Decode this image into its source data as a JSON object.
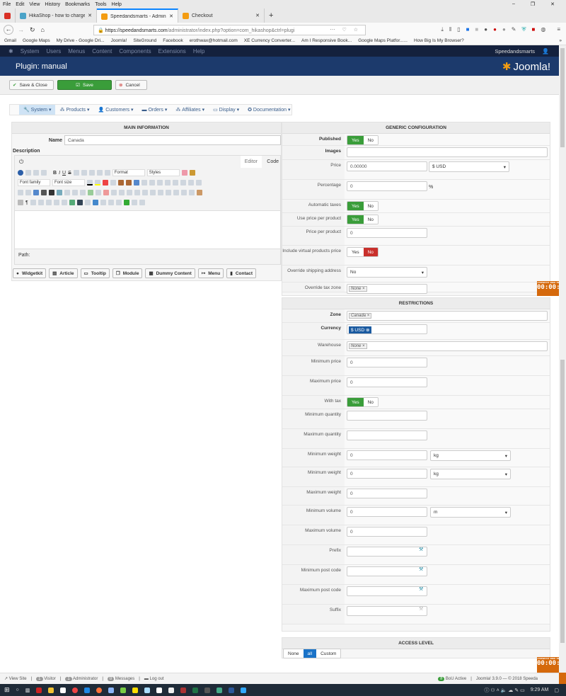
{
  "browser": {
    "menu": [
      "File",
      "Edit",
      "View",
      "History",
      "Bookmarks",
      "Tools",
      "Help"
    ],
    "tabs": [
      {
        "label": ""
      },
      {
        "label": "HikaShop - how to charge diffe"
      },
      {
        "label": "Speedandsmarts - Administrat"
      },
      {
        "label": "Checkout"
      }
    ],
    "url_host": "https://speedandsmarts.com",
    "url_path": "/administrator/index.php?option=com_hikashop&ctrl=plugi",
    "bookmarks": [
      "Gmail",
      "Google Maps",
      "My Drive - Google Dri...",
      "Joomla!",
      "SiteGround",
      "Facebook",
      "erothwax@hotmail.com",
      "XE Currency Converter...",
      "Am I Responsive Book...",
      "Google Maps Platfor......",
      "How Big Is My Browser?"
    ]
  },
  "joomla": {
    "nav": [
      "System",
      "Users",
      "Menus",
      "Content",
      "Components",
      "Extensions",
      "Help"
    ],
    "site_link": "Speedandsmarts",
    "page_title": "Plugin: manual",
    "logo_text": "Joomla!",
    "toolbar": {
      "save_close": "Save & Close",
      "save": "Save",
      "cancel": "Cancel"
    },
    "colors": {
      "nav": "#14213d",
      "header": "#1c3a6c",
      "save": "#3a9d3a",
      "toggle_on": "#3a9d3a",
      "toggle_no": "#c9302c",
      "timer": "#d5690c"
    }
  },
  "hika_menu": [
    "System",
    "Products",
    "Customers",
    "Orders",
    "Affiliates",
    "Display",
    "Documentation"
  ],
  "main_info": {
    "title": "MAIN INFORMATION",
    "name_label": "Name",
    "name_value": "Canada",
    "description_label": "Description",
    "editor_tabs": [
      "Editor",
      "Code"
    ],
    "dropdowns": {
      "format": "Format",
      "styles": "Styles",
      "font_family": "Font family",
      "font_size": "Font size"
    },
    "path_label": "Path:",
    "buttons": [
      "Widgetkit",
      "Article",
      "Tooltip",
      "Module",
      "Dummy Content",
      "Menu",
      "Contact"
    ]
  },
  "generic": {
    "title": "GENERIC CONFIGURATION",
    "fields": [
      {
        "label": "Published",
        "type": "toggle",
        "value": "Yes",
        "bold": true
      },
      {
        "label": "Images",
        "type": "input",
        "value": "",
        "bold": true,
        "wide": true
      },
      {
        "label": "Price",
        "type": "price",
        "value": "0.00000",
        "currency": "$ USD"
      },
      {
        "label": "Percentage",
        "type": "input",
        "value": "0",
        "unit": "%"
      },
      {
        "label": "Automatic taxes",
        "type": "toggle",
        "value": "Yes"
      },
      {
        "label": "Use price per product",
        "type": "toggle",
        "value": "Yes"
      },
      {
        "label": "Price per product",
        "type": "input",
        "value": "0"
      },
      {
        "label": "Include virtual products price",
        "type": "toggle",
        "value": "No"
      },
      {
        "label": "Override shipping address",
        "type": "select",
        "value": "No"
      },
      {
        "label": "Override tax zone",
        "type": "tags",
        "tags": [
          "None"
        ]
      }
    ]
  },
  "restrictions": {
    "title": "RESTRICTIONS",
    "fields": [
      {
        "label": "Zone",
        "type": "tags",
        "tags": [
          "Canada"
        ],
        "bold": true,
        "wide": true
      },
      {
        "label": "Currency",
        "type": "currency",
        "tags": [
          "$ USD"
        ],
        "bold": true
      },
      {
        "label": "Warehouse",
        "type": "tags",
        "tags": [
          "None"
        ],
        "wide": true
      },
      {
        "label": "Minimum price",
        "type": "input",
        "value": "0"
      },
      {
        "label": "Maximum price",
        "type": "input",
        "value": "0"
      },
      {
        "label": "With tax",
        "type": "toggle",
        "value": "Yes"
      },
      {
        "label": "Minimum quantity",
        "type": "input",
        "value": ""
      },
      {
        "label": "Maximum quantity",
        "type": "input",
        "value": ""
      },
      {
        "label": "Minimum weight",
        "type": "unit",
        "value": "0",
        "unit": "kg"
      },
      {
        "label": "Minimum weight",
        "type": "unit",
        "value": "0",
        "unit": "kg"
      },
      {
        "label": "Maximum weight",
        "type": "input",
        "value": "0"
      },
      {
        "label": "Minimum volume",
        "type": "unit",
        "value": "0",
        "unit": "m"
      },
      {
        "label": "Maximum volume",
        "type": "input",
        "value": "0"
      },
      {
        "label": "Prefix",
        "type": "regex",
        "value": ""
      },
      {
        "label": "Minimum post code",
        "type": "regex",
        "value": ""
      },
      {
        "label": "Maximum post code",
        "type": "regex",
        "value": ""
      },
      {
        "label": "Suffix",
        "type": "regex",
        "value": ""
      }
    ]
  },
  "access": {
    "title": "ACCESS LEVEL",
    "options": [
      "None",
      "all",
      "Custom"
    ],
    "selected": "all"
  },
  "timer": {
    "caption": "STOPWATCH HOUR MIN SEC",
    "value": "00:00:00"
  },
  "status": {
    "view_site": "View Site",
    "visitor_count": "1",
    "visitor": "Visitor",
    "admin_count": "1",
    "admin": "Administrator",
    "msg_count": "0",
    "messages": "Messages",
    "logout": "Log out",
    "bou": "BoU Active",
    "version": "Joomla! 3.9.0 — © 2018 Speeda"
  },
  "taskbar": {
    "time": "9:29 AM"
  }
}
